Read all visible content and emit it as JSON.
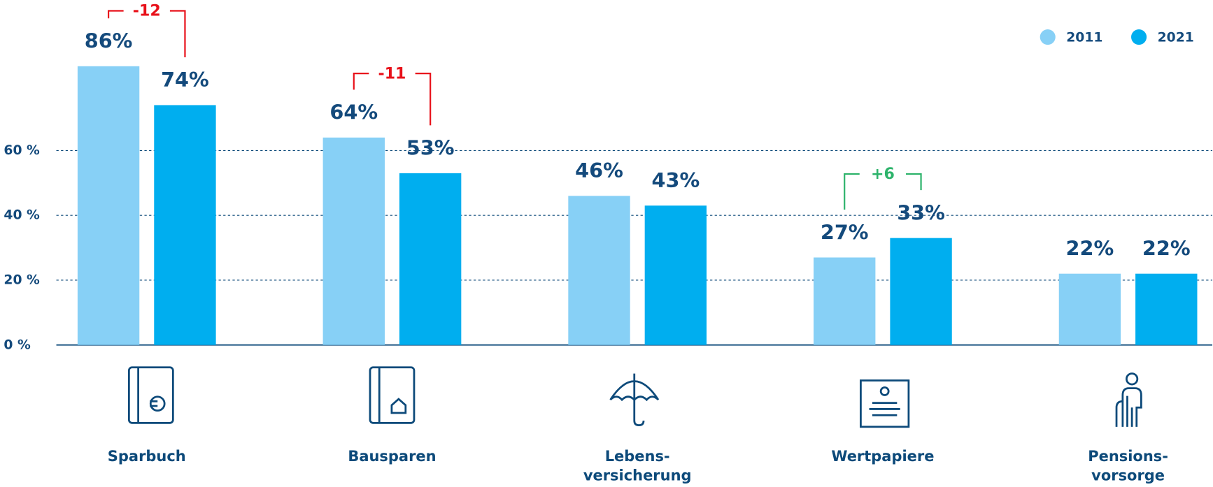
{
  "chart_data": {
    "type": "bar",
    "categories": [
      "Sparbuch",
      "Bausparen",
      "Lebens-\nversicherung",
      "Wertpapiere",
      "Pensions-\nvorsorge"
    ],
    "series": [
      {
        "name": "2011",
        "color": "#87d0f6",
        "values": [
          86,
          64,
          46,
          27,
          22
        ],
        "value_labels": [
          "86%",
          "64%",
          "46%",
          "27%",
          "22%"
        ]
      },
      {
        "name": "2021",
        "color": "#00aeef",
        "values": [
          74,
          53,
          43,
          33,
          22
        ],
        "value_labels": [
          "74%",
          "53%",
          "43%",
          "33%",
          "22%"
        ]
      }
    ],
    "ylim": [
      0,
      90
    ],
    "yticks": [
      {
        "value": 0,
        "label": "0 %"
      },
      {
        "value": 20,
        "label": "20 %"
      },
      {
        "value": 40,
        "label": "40 %"
      },
      {
        "value": 60,
        "label": "60 %"
      }
    ],
    "grid": true,
    "legend": "top-right",
    "annotations": [
      {
        "category": "Sparbuch",
        "text": "-12",
        "color": "#e8111a"
      },
      {
        "category": "Bausparen",
        "text": "-11",
        "color": "#e8111a"
      },
      {
        "category": "Wertpapiere",
        "text": "+6",
        "color": "#2db36b"
      }
    ]
  }
}
